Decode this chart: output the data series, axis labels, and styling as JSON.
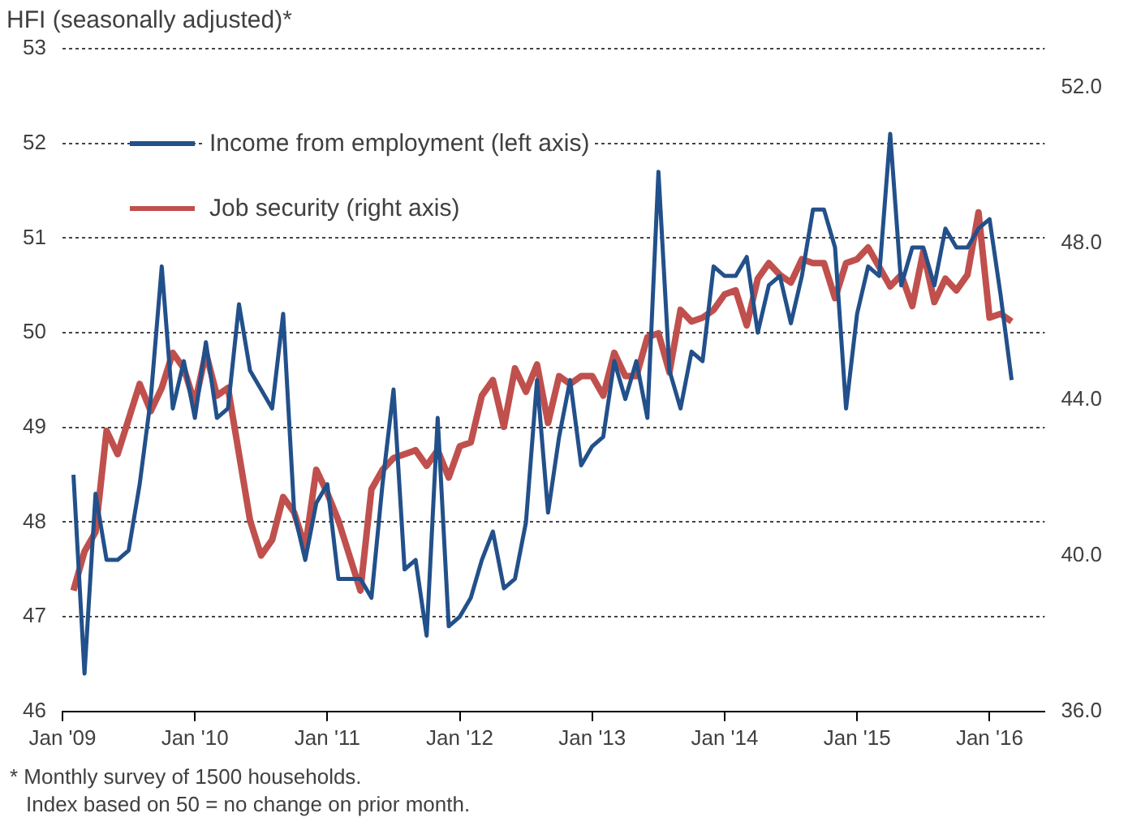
{
  "chart_data": {
    "type": "line",
    "title": "HFI (seasonally adjusted)*",
    "x": [
      "2009-02",
      "2009-03",
      "2009-04",
      "2009-05",
      "2009-06",
      "2009-07",
      "2009-08",
      "2009-09",
      "2009-10",
      "2009-11",
      "2009-12",
      "2010-01",
      "2010-02",
      "2010-03",
      "2010-04",
      "2010-05",
      "2010-06",
      "2010-07",
      "2010-08",
      "2010-09",
      "2010-10",
      "2010-11",
      "2010-12",
      "2011-01",
      "2011-02",
      "2011-03",
      "2011-04",
      "2011-05",
      "2011-06",
      "2011-07",
      "2011-08",
      "2011-09",
      "2011-10",
      "2011-11",
      "2011-12",
      "2012-01",
      "2012-02",
      "2012-03",
      "2012-04",
      "2012-05",
      "2012-06",
      "2012-07",
      "2012-08",
      "2012-09",
      "2012-10",
      "2012-11",
      "2012-12",
      "2013-01",
      "2013-02",
      "2013-03",
      "2013-04",
      "2013-05",
      "2013-06",
      "2013-07",
      "2013-08",
      "2013-09",
      "2013-10",
      "2013-11",
      "2013-12",
      "2014-01",
      "2014-02",
      "2014-03",
      "2014-04",
      "2014-05",
      "2014-06",
      "2014-07",
      "2014-08",
      "2014-09",
      "2014-10",
      "2014-11",
      "2014-12",
      "2015-01",
      "2015-02",
      "2015-03",
      "2015-04",
      "2015-05",
      "2015-06",
      "2015-07",
      "2015-08",
      "2015-09",
      "2015-10",
      "2015-11",
      "2015-12",
      "2016-01",
      "2016-02",
      "2016-03"
    ],
    "series": [
      {
        "name": "Income from employment (left axis)",
        "color": "#22508a",
        "axis": "y",
        "values": [
          48.5,
          46.4,
          48.3,
          47.6,
          47.6,
          47.7,
          48.4,
          49.3,
          50.7,
          49.2,
          49.7,
          49.1,
          49.9,
          49.1,
          49.2,
          50.3,
          49.6,
          49.4,
          49.2,
          50.2,
          48.1,
          47.6,
          48.2,
          48.4,
          47.4,
          47.4,
          47.4,
          47.2,
          48.4,
          49.4,
          47.5,
          47.6,
          46.8,
          49.1,
          46.9,
          47.0,
          47.2,
          47.6,
          47.9,
          47.3,
          47.4,
          48.0,
          49.5,
          48.1,
          48.9,
          49.5,
          48.6,
          48.8,
          48.9,
          49.7,
          49.3,
          49.7,
          49.1,
          51.7,
          49.6,
          49.2,
          49.8,
          49.7,
          50.7,
          50.6,
          50.6,
          50.8,
          50.0,
          50.5,
          50.6,
          50.1,
          50.6,
          51.3,
          51.3,
          50.9,
          49.2,
          50.2,
          50.7,
          50.6,
          52.1,
          50.5,
          50.9,
          50.9,
          50.5,
          51.1,
          50.9,
          50.9,
          51.1,
          51.2,
          50.4,
          49.5
        ]
      },
      {
        "name": "Job security (right axis)",
        "color": "#c0504d",
        "axis": "y2",
        "values": [
          39.1,
          40.1,
          40.6,
          43.2,
          42.6,
          43.5,
          44.4,
          43.7,
          44.3,
          45.2,
          44.8,
          43.9,
          45.2,
          44.1,
          44.3,
          42.6,
          40.9,
          40.0,
          40.4,
          41.5,
          41.1,
          40.2,
          42.2,
          41.6,
          40.9,
          40.0,
          39.1,
          41.7,
          42.2,
          42.5,
          42.6,
          42.7,
          42.3,
          42.7,
          42.0,
          42.8,
          42.9,
          44.1,
          44.5,
          43.3,
          44.8,
          44.2,
          44.9,
          43.4,
          44.6,
          44.4,
          44.6,
          44.6,
          44.1,
          45.2,
          44.6,
          44.6,
          45.6,
          45.7,
          44.7,
          46.3,
          46.0,
          46.1,
          46.3,
          46.7,
          46.8,
          45.9,
          47.1,
          47.5,
          47.2,
          47.0,
          47.6,
          47.5,
          47.5,
          46.6,
          47.5,
          47.6,
          47.9,
          47.4,
          46.9,
          47.2,
          46.4,
          47.8,
          46.5,
          47.1,
          46.8,
          47.2,
          48.8,
          46.1,
          46.2,
          46.0
        ]
      }
    ],
    "xlim": [
      "2009-01",
      "2016-06"
    ],
    "xticks": [
      {
        "value": "2009-01",
        "label": "Jan '09"
      },
      {
        "value": "2010-01",
        "label": "Jan '10"
      },
      {
        "value": "2011-01",
        "label": "Jan '11"
      },
      {
        "value": "2012-01",
        "label": "Jan '12"
      },
      {
        "value": "2013-01",
        "label": "Jan '13"
      },
      {
        "value": "2014-01",
        "label": "Jan '14"
      },
      {
        "value": "2015-01",
        "label": "Jan '15"
      },
      {
        "value": "2016-01",
        "label": "Jan '16"
      }
    ],
    "ylim": [
      46,
      53
    ],
    "yticks": [
      46,
      47,
      48,
      49,
      50,
      51,
      52,
      53
    ],
    "y2lim": [
      36,
      53
    ],
    "y2ticks": [
      {
        "value": 36,
        "label": "36.0"
      },
      {
        "value": 40,
        "label": "40.0"
      },
      {
        "value": 44,
        "label": "44.0"
      },
      {
        "value": 48,
        "label": "48.0"
      },
      {
        "value": 52,
        "label": "52.0"
      }
    ],
    "grid": "y",
    "legend": "top left",
    "marker": "none",
    "line_style": "solid",
    "annotations": [
      "* Monthly survey of 1500 households.",
      "Index based on 50 = no change on prior month."
    ]
  }
}
